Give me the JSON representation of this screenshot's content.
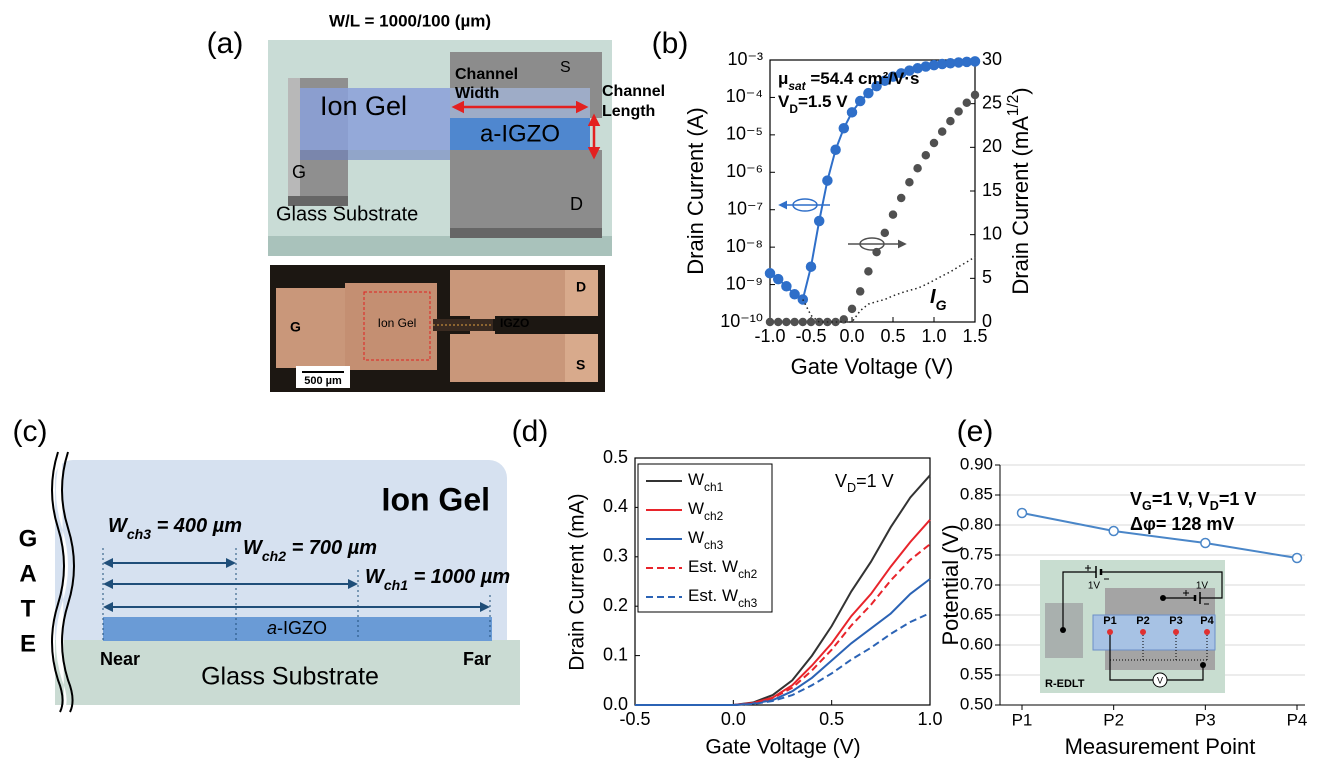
{
  "panel_labels": [
    "(a)",
    "(b)",
    "(c)",
    "(d)",
    "(e)"
  ],
  "device_schematic": {
    "title": "W/L = 1000/100 (µm)",
    "source": "S",
    "gate": "G",
    "drain": "D",
    "ion_gel": "Ion Gel",
    "channel": "a-IGZO",
    "channel_width": [
      "Channel",
      "Width"
    ],
    "channel_length": [
      "Channel",
      "Length"
    ],
    "substrate": "Glass Substrate"
  },
  "micrograph": {
    "gate": "G",
    "ion_gel": "Ion Gel",
    "channel": "IGZO",
    "drain": "D",
    "source": "S",
    "scale_bar": "500 µm"
  },
  "cross_section": {
    "gate": [
      "G",
      "A",
      "T",
      "E"
    ],
    "ion_gel": "Ion Gel",
    "widths": [
      "Wch3 = 400 µm",
      "Wch2 = 700 µm",
      "Wch1 = 1000 µm"
    ],
    "channel": "a-IGZO",
    "near": "Near",
    "far": "Far",
    "substrate": "Glass Substrate"
  },
  "chart_data": [
    {
      "type": "line",
      "xlabel": "Gate Voltage (V)",
      "ylabel": "Drain Current (A)",
      "y2label": "Drain Current (mA1/2)",
      "annotations": [
        "μsat =54.4 cm²/V·s",
        "VD=1.5 V",
        "IG"
      ],
      "x": [
        -1,
        -0.9,
        -0.8,
        -0.7,
        -0.6,
        -0.5,
        -0.4,
        -0.3,
        -0.2,
        -0.1,
        0,
        0.1,
        0.2,
        0.3,
        0.4,
        0.5,
        0.6,
        0.7,
        0.8,
        0.9,
        1,
        1.1,
        1.2,
        1.3,
        1.4,
        1.5
      ],
      "xlim": [
        -1,
        1.5
      ],
      "xticks": [
        {
          "value": -1,
          "label": "-1.0"
        },
        -0.5,
        {
          "value": 0,
          "label": "0.0"
        },
        0.5,
        {
          "value": 1,
          "label": "1.0"
        },
        1.5
      ],
      "ylog": true,
      "ylim": [
        1e-10,
        0.001
      ],
      "yticks": [
        {
          "value": 1e-10,
          "label": "10⁻¹⁰"
        },
        {
          "value": 1e-09,
          "label": "10⁻⁹"
        },
        {
          "value": 1e-08,
          "label": "10⁻⁸"
        },
        {
          "value": 1e-07,
          "label": "10⁻⁷"
        },
        {
          "value": 1e-06,
          "label": "10⁻⁶"
        },
        {
          "value": 1e-05,
          "label": "10⁻⁵"
        },
        {
          "value": 0.0001,
          "label": "10⁻⁴"
        },
        {
          "value": 0.001,
          "label": "10⁻³"
        }
      ],
      "y2lim": [
        0,
        30
      ],
      "y2ticks": [
        0,
        5,
        10,
        15,
        20,
        25,
        30
      ],
      "series": [
        {
          "color": "#2f6fc9",
          "style": "line-markers",
          "values": [
            2e-09,
            1.4e-09,
            9e-10,
            5.5e-10,
            4e-10,
            3e-09,
            5e-08,
            6e-07,
            4e-06,
            1.5e-05,
            4e-05,
            8e-05,
            0.00013,
            0.0002,
            0.00028,
            0.00036,
            0.00044,
            0.00052,
            0.0006,
            0.00067,
            0.00073,
            0.00078,
            0.00082,
            0.00086,
            0.00089,
            0.00092
          ]
        },
        {
          "color": "#505050",
          "style": "markers",
          "axis": "y2",
          "values": [
            0,
            0,
            0,
            0,
            0,
            0,
            0,
            0,
            0,
            0.3,
            1.5,
            3.5,
            5.8,
            8,
            10.2,
            12.3,
            14.2,
            16,
            17.6,
            19.1,
            20.5,
            21.8,
            23,
            24.1,
            25.1,
            26
          ]
        },
        {
          "color": "#222222",
          "style": "line",
          "dash": "dotted",
          "values": [
            null,
            null,
            null,
            null,
            4e-10,
            1.5e-10,
            1e-10,
            1e-10,
            1e-10,
            1e-10,
            1e-10,
            2e-10,
            3e-10,
            3.5e-10,
            4e-10,
            5e-10,
            6e-10,
            7e-10,
            8e-10,
            1e-09,
            1.3e-09,
            1.7e-09,
            2.2e-09,
            3e-09,
            4e-09,
            5.5e-09
          ]
        }
      ]
    },
    {
      "type": "line",
      "xlabel": "Gate Voltage (V)",
      "ylabel": "Drain Current (mA)",
      "annotations": [
        "VD=1 V"
      ],
      "legend": "upper left",
      "x": [
        -0.5,
        -0.4,
        -0.3,
        -0.2,
        -0.1,
        0,
        0.1,
        0.2,
        0.3,
        0.4,
        0.5,
        0.6,
        0.7,
        0.8,
        0.9,
        1
      ],
      "xlim": [
        -0.5,
        1
      ],
      "xticks": [
        -0.5,
        {
          "value": 0,
          "label": "0.0"
        },
        0.5,
        {
          "value": 1,
          "label": "1.0"
        }
      ],
      "ylim": [
        0,
        0.5
      ],
      "yticks": [
        {
          "value": 0,
          "label": "0.0"
        },
        0.1,
        0.2,
        0.3,
        0.4,
        0.5
      ],
      "series": [
        {
          "name": "Wch1",
          "color": "#333333",
          "style": "line",
          "values": [
            0,
            0,
            0,
            0,
            0,
            0,
            0.005,
            0.02,
            0.05,
            0.1,
            0.16,
            0.23,
            0.29,
            0.36,
            0.42,
            0.465
          ]
        },
        {
          "name": "Wch2",
          "color": "#e8242b",
          "style": "line",
          "values": [
            0,
            0,
            0,
            0,
            0,
            0,
            0.004,
            0.015,
            0.04,
            0.08,
            0.125,
            0.18,
            0.225,
            0.28,
            0.33,
            0.375
          ]
        },
        {
          "name": "Wch3",
          "color": "#2b63b5",
          "style": "line",
          "values": [
            0,
            0,
            0,
            0,
            0,
            0,
            0.003,
            0.01,
            0.028,
            0.055,
            0.09,
            0.125,
            0.155,
            0.185,
            0.225,
            0.255
          ]
        },
        {
          "name": "Est. Wch2",
          "color": "#e8242b",
          "style": "line",
          "dash": "dashed",
          "values": [
            0,
            0,
            0,
            0,
            0,
            0,
            0.0035,
            0.014,
            0.035,
            0.07,
            0.112,
            0.161,
            0.203,
            0.252,
            0.294,
            0.3255
          ]
        },
        {
          "name": "Est. Wch3",
          "color": "#2b63b5",
          "style": "line",
          "dash": "dashed",
          "values": [
            0,
            0,
            0,
            0,
            0,
            0,
            0.002,
            0.008,
            0.02,
            0.04,
            0.064,
            0.092,
            0.116,
            0.144,
            0.168,
            0.186
          ]
        }
      ]
    },
    {
      "type": "line",
      "xlabel": "Measurement Point",
      "ylabel": "Potential (V)",
      "annotations": [
        "VG=1 V, VD=1 V",
        "Δφ= 128 mV"
      ],
      "categories": [
        "P1",
        "P2",
        "P3",
        "P4"
      ],
      "values": [
        0.82,
        0.79,
        0.77,
        0.745
      ],
      "color": "#4a86c8",
      "style": "line-markers",
      "marker": "open",
      "grid": true,
      "ylim": [
        0.5,
        0.9
      ],
      "yticks": [
        {
          "value": 0.5,
          "label": "0.50"
        },
        0.55,
        {
          "value": 0.6,
          "label": "0.60"
        },
        0.65,
        {
          "value": 0.7,
          "label": "0.70"
        },
        0.75,
        {
          "value": 0.8,
          "label": "0.80"
        },
        0.85,
        {
          "value": 0.9,
          "label": "0.90"
        }
      ],
      "inset": {
        "supplies": [
          "1V",
          "1V"
        ],
        "probes": [
          "P1",
          "P2",
          "P3",
          "P4"
        ],
        "device": "R-EDLT",
        "meter": "V"
      }
    }
  ]
}
